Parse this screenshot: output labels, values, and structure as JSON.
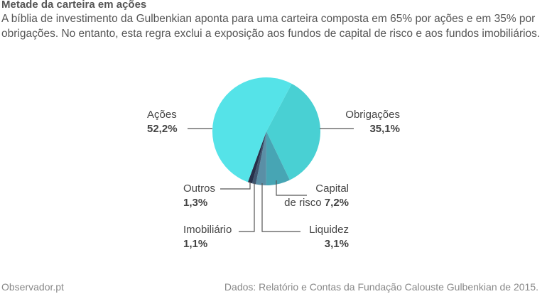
{
  "header": {
    "title": "Metade da carteira em ações",
    "subtitle": "A bíblia de investimento da Gulbenkian aponta para uma carteira composta em 65% por ações e em 35% por obrigações. No entanto, esta regra exclui a exposição aos fundos de capital de risco e aos fundos imobiliários."
  },
  "footer": {
    "source_left": "Observador.pt",
    "source_right": "Dados: Relatório e Contas da Fundação Calouste Gulbenkian de 2015."
  },
  "chart_data": {
    "type": "pie",
    "title": "Metade da carteira em ações",
    "slices": [
      {
        "name": "Obrigações",
        "label_lines": [
          "Obrigações"
        ],
        "value_text": "35,1%",
        "value": 35.1,
        "color": "#49d0d3"
      },
      {
        "name": "Capital de risco",
        "label_lines": [
          "Capital",
          "de risco"
        ],
        "value_text": "7,2%",
        "value": 7.2,
        "color": "#47a5b4"
      },
      {
        "name": "Liquidez",
        "label_lines": [
          "Liquidez"
        ],
        "value_text": "3,1%",
        "value": 3.1,
        "color": "#5a8fa6"
      },
      {
        "name": "Imobiliário",
        "label_lines": [
          "Imobiliário"
        ],
        "value_text": "1,1%",
        "value": 1.1,
        "color": "#3f5670"
      },
      {
        "name": "Outros",
        "label_lines": [
          "Outros"
        ],
        "value_text": "1,3%",
        "value": 1.3,
        "color": "#27304a"
      },
      {
        "name": "Ações",
        "label_lines": [
          "Ações"
        ],
        "value_text": "52,2%",
        "value": 52.2,
        "color": "#55e3e8"
      }
    ]
  }
}
